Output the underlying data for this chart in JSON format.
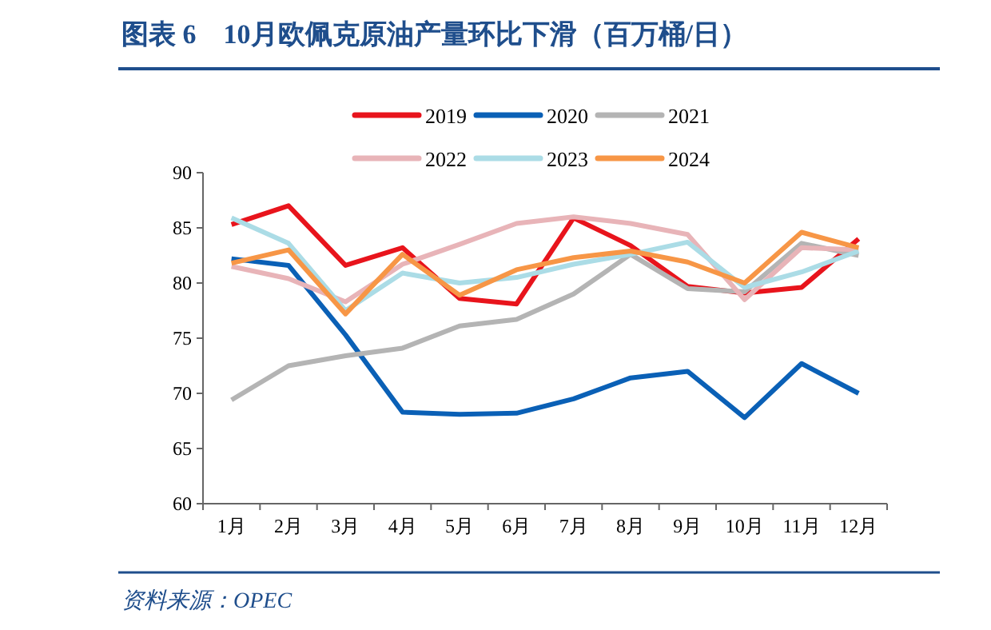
{
  "chart_data": {
    "type": "line",
    "title": "图表 6　10月欧佩克原油产量环比下滑（百万桶/日）",
    "annotations": [
      "资料来源：OPEC"
    ],
    "categories": [
      "1月",
      "2月",
      "3月",
      "4月",
      "5月",
      "6月",
      "7月",
      "8月",
      "9月",
      "10月",
      "11月",
      "12月"
    ],
    "ylim": [
      60,
      90
    ],
    "yticks": [
      60,
      65,
      70,
      75,
      80,
      85,
      90
    ],
    "grid": false,
    "legend": "top",
    "marker": "none",
    "line_style": "solid",
    "series": [
      {
        "name": "2019",
        "color": "#e8141c",
        "values": [
          85.3,
          87,
          81.6,
          83.2,
          78.6,
          78.1,
          85.9,
          83.4,
          79.7,
          79.1,
          79.6,
          84
        ]
      },
      {
        "name": "2020",
        "color": "#0a60b6",
        "values": [
          82.2,
          81.6,
          75.3,
          68.3,
          68.1,
          68.2,
          69.5,
          71.4,
          72,
          67.8,
          72.7,
          70
        ]
      },
      {
        "name": "2021",
        "color": "#b4b4b4",
        "values": [
          69.4,
          72.5,
          73.4,
          74.1,
          76.1,
          76.7,
          79,
          82.6,
          79.5,
          79.2,
          83.6,
          82.5
        ]
      },
      {
        "name": "2022",
        "color": "#e8b4b8",
        "values": [
          81.5,
          80.4,
          78.3,
          81.7,
          83.5,
          85.4,
          86,
          85.4,
          84.4,
          78.5,
          83.2,
          83
        ]
      },
      {
        "name": "2023",
        "color": "#abdce6",
        "values": [
          85.9,
          83.6,
          77.5,
          80.9,
          80,
          80.5,
          81.7,
          82.6,
          83.7,
          79.6,
          81,
          82.9
        ]
      },
      {
        "name": "2024",
        "color": "#f79646",
        "values": [
          81.8,
          83,
          77.2,
          82.6,
          78.9,
          81.2,
          82.3,
          82.9,
          81.9,
          80,
          84.6,
          83.2
        ]
      }
    ]
  }
}
